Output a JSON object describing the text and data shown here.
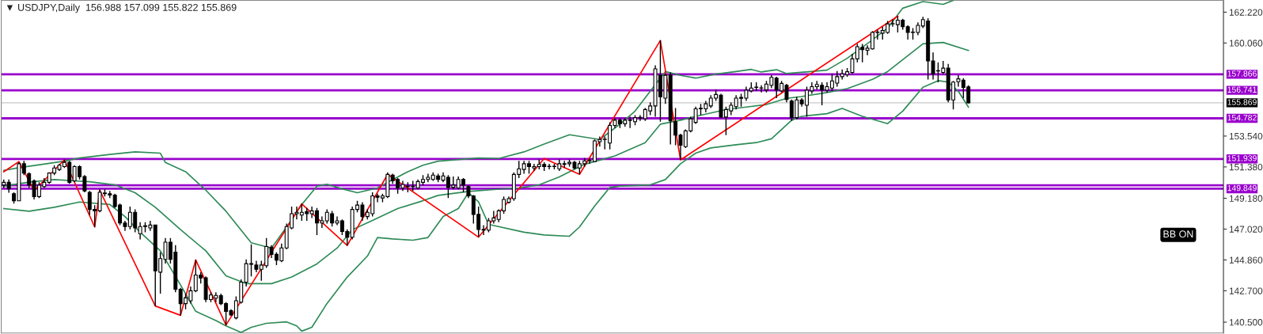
{
  "chart_data": {
    "type": "candlestick",
    "title": "▼ USDJPY,Daily  156.988 157.099 155.822 155.869",
    "categories": [
      null,
      null,
      null,
      null,
      null,
      null,
      null,
      null,
      null,
      null,
      null,
      null,
      null,
      null,
      null,
      null,
      null,
      null,
      null,
      null,
      null,
      null,
      null,
      null,
      null,
      null,
      null,
      null,
      null,
      null,
      null,
      null,
      null,
      null,
      null,
      null,
      null,
      null,
      null,
      null,
      null,
      null,
      null,
      null,
      null,
      null,
      null,
      null,
      null,
      null,
      null,
      null,
      null,
      null,
      null,
      null,
      null,
      null,
      null,
      null,
      null,
      null,
      null,
      null,
      null,
      null,
      null,
      null,
      null,
      null,
      null,
      null,
      null,
      null,
      null,
      null,
      null,
      null,
      null,
      null,
      null,
      null,
      null,
      null,
      null,
      null,
      null,
      null,
      null,
      null,
      null,
      null,
      null,
      null,
      null,
      null,
      null,
      null,
      null,
      null,
      null,
      null,
      null,
      null,
      null,
      null,
      null,
      null,
      null,
      null,
      null,
      null,
      null,
      null,
      null,
      null,
      null,
      null,
      null,
      null,
      null,
      null,
      null,
      null,
      null,
      null,
      null,
      null,
      null,
      null,
      null,
      null,
      null,
      null,
      null,
      null,
      null,
      null,
      null,
      null,
      null,
      null,
      null,
      null,
      null,
      null,
      null,
      null,
      null,
      null,
      null,
      null,
      null,
      null,
      null,
      null,
      null,
      null,
      null,
      null,
      null,
      null,
      null,
      null,
      null,
      null,
      null,
      null,
      null,
      null,
      null,
      null,
      null,
      null,
      null,
      null,
      null,
      null,
      null,
      null,
      null,
      null,
      null,
      null,
      null,
      null,
      null,
      null,
      null,
      null,
      null,
      null,
      null,
      null,
      null,
      null,
      null,
      null,
      null,
      null,
      null,
      null,
      null,
      null,
      null,
      null,
      null,
      null,
      null,
      null,
      null,
      null,
      null,
      null,
      null,
      null,
      null,
      null,
      null,
      null,
      null,
      null,
      null,
      null,
      null,
      null,
      null,
      null,
      null,
      null,
      null,
      null,
      null,
      null,
      null,
      null,
      null,
      null,
      null,
      null,
      null,
      null
    ],
    "ohlc": [
      [
        150.1,
        150.5,
        149.9,
        150.3
      ],
      [
        150.3,
        150.5,
        149.57,
        149.85
      ],
      [
        149.5,
        149.6,
        148.8,
        149.0
      ],
      [
        149.0,
        151.7,
        149.0,
        151.6
      ],
      [
        151.6,
        151.8,
        150.8,
        150.95
      ],
      [
        150.9,
        151.0,
        149.9,
        150.1
      ],
      [
        150.4,
        150.5,
        149.1,
        149.3
      ],
      [
        149.3,
        150.3,
        149.2,
        150.1
      ],
      [
        150.0,
        150.6,
        149.9,
        150.3
      ],
      [
        150.3,
        151.0,
        150.2,
        150.95
      ],
      [
        150.95,
        151.5,
        150.8,
        151.3
      ],
      [
        151.2,
        151.6,
        151.1,
        151.5
      ],
      [
        151.4,
        151.9,
        151.3,
        151.7
      ],
      [
        151.7,
        151.8,
        150.2,
        150.3
      ],
      [
        150.4,
        151.5,
        150.3,
        151.4
      ],
      [
        151.4,
        151.5,
        150.5,
        150.7
      ],
      [
        150.7,
        150.8,
        149.6,
        149.7
      ],
      [
        149.6,
        149.7,
        148.0,
        148.4
      ],
      [
        148.4,
        148.7,
        147.17,
        148.3
      ],
      [
        148.3,
        149.8,
        148.2,
        149.6
      ],
      [
        149.5,
        149.8,
        149.3,
        149.55
      ],
      [
        149.5,
        149.7,
        149.2,
        149.4
      ],
      [
        149.4,
        149.5,
        148.5,
        148.6
      ],
      [
        148.7,
        148.8,
        147.3,
        147.45
      ],
      [
        147.45,
        147.6,
        146.9,
        147.2
      ],
      [
        147.2,
        148.6,
        147.0,
        148.2
      ],
      [
        148.2,
        148.4,
        146.8,
        147.1
      ],
      [
        146.7,
        147.5,
        146.3,
        147.2
      ],
      [
        147.2,
        147.5,
        146.8,
        147.25
      ],
      [
        147.1,
        147.6,
        146.9,
        147.3
      ],
      [
        147.3,
        147.3,
        141.63,
        144.1
      ],
      [
        144.0,
        145.4,
        142.5,
        144.95
      ],
      [
        144.9,
        146.4,
        144.6,
        146.1
      ],
      [
        146.1,
        146.4,
        144.6,
        144.9
      ],
      [
        145.4,
        145.9,
        142.6,
        142.8
      ],
      [
        142.8,
        142.9,
        140.98,
        141.8
      ],
      [
        141.8,
        142.5,
        141.4,
        142.2
      ],
      [
        142.0,
        143.0,
        141.8,
        142.7
      ],
      [
        142.7,
        144.86,
        142.6,
        143.8
      ],
      [
        143.8,
        144.0,
        143.2,
        143.6
      ],
      [
        143.6,
        143.7,
        141.9,
        142.1
      ],
      [
        142.08,
        142.6,
        141.9,
        142.4
      ],
      [
        142.18,
        142.6,
        141.9,
        142.37
      ],
      [
        142.35,
        142.5,
        141.7,
        141.8
      ],
      [
        141.8,
        141.9,
        140.3,
        141.25
      ],
      [
        141.3,
        141.4,
        140.95,
        141.0
      ],
      [
        140.8,
        142.3,
        140.7,
        142.0
      ],
      [
        141.9,
        143.5,
        141.8,
        143.3
      ],
      [
        143.3,
        144.9,
        143.0,
        144.6
      ],
      [
        144.6,
        145.95,
        143.7,
        144.55
      ],
      [
        144.5,
        144.8,
        144.0,
        144.2
      ],
      [
        144.2,
        144.8,
        143.4,
        144.5
      ],
      [
        144.45,
        146.4,
        144.3,
        145.8
      ],
      [
        145.75,
        145.9,
        145.0,
        145.25
      ],
      [
        145.25,
        145.4,
        144.5,
        144.85
      ],
      [
        144.8,
        146.0,
        144.7,
        145.7
      ],
      [
        145.7,
        147.4,
        145.6,
        147.2
      ],
      [
        147.1,
        148.6,
        147.0,
        148.1
      ],
      [
        148.1,
        148.6,
        147.7,
        148.2
      ],
      [
        148.0,
        148.8,
        147.6,
        148.2
      ],
      [
        148.25,
        148.5,
        147.6,
        148.1
      ],
      [
        148.1,
        148.6,
        147.8,
        148.3
      ],
      [
        148.3,
        148.5,
        146.6,
        147.45
      ],
      [
        147.45,
        147.9,
        147.1,
        147.6
      ],
      [
        147.6,
        148.4,
        147.4,
        148.2
      ],
      [
        148.1,
        148.3,
        147.2,
        147.45
      ],
      [
        147.45,
        147.9,
        147.3,
        147.6
      ],
      [
        147.6,
        147.7,
        146.6,
        146.85
      ],
      [
        146.85,
        147.0,
        145.87,
        146.45
      ],
      [
        146.45,
        148.6,
        146.3,
        148.4
      ],
      [
        148.4,
        149.0,
        148.2,
        148.7
      ],
      [
        148.7,
        148.9,
        147.6,
        147.9
      ],
      [
        147.9,
        148.4,
        147.7,
        148.2
      ],
      [
        148.1,
        149.6,
        147.9,
        149.35
      ],
      [
        149.35,
        149.5,
        148.9,
        149.25
      ],
      [
        149.2,
        149.5,
        148.9,
        149.35
      ],
      [
        149.3,
        151.0,
        149.2,
        150.85
      ],
      [
        150.8,
        150.9,
        150.2,
        150.4
      ],
      [
        150.5,
        150.6,
        149.5,
        149.9
      ],
      [
        149.9,
        150.4,
        149.7,
        150.15
      ],
      [
        150.0,
        150.3,
        149.6,
        150.03
      ],
      [
        150.0,
        150.4,
        149.7,
        150.02
      ],
      [
        149.9,
        150.5,
        149.8,
        150.35
      ],
      [
        150.3,
        150.8,
        150.1,
        150.5
      ],
      [
        150.5,
        150.9,
        150.3,
        150.65
      ],
      [
        150.5,
        151.0,
        150.4,
        150.8
      ],
      [
        150.75,
        150.9,
        150.3,
        150.5
      ],
      [
        150.45,
        151.0,
        150.3,
        150.75
      ],
      [
        150.65,
        150.8,
        149.2,
        149.95
      ],
      [
        149.95,
        150.7,
        149.8,
        150.1
      ],
      [
        149.9,
        150.7,
        149.8,
        150.5
      ],
      [
        150.5,
        150.6,
        149.6,
        150.1
      ],
      [
        150.0,
        150.1,
        149.2,
        149.35
      ],
      [
        149.35,
        149.4,
        147.4,
        148.05
      ],
      [
        148.05,
        148.6,
        146.46,
        147.0
      ],
      [
        146.95,
        147.3,
        146.6,
        147.0
      ],
      [
        146.95,
        147.8,
        146.8,
        147.6
      ],
      [
        147.6,
        148.3,
        147.4,
        147.8
      ],
      [
        147.7,
        148.4,
        147.5,
        148.3
      ],
      [
        148.3,
        149.3,
        148.1,
        149.1
      ],
      [
        148.9,
        149.3,
        148.8,
        149.15
      ],
      [
        149.15,
        151.0,
        149.0,
        150.85
      ],
      [
        150.85,
        151.8,
        150.6,
        151.25
      ],
      [
        151.2,
        151.8,
        150.9,
        151.6
      ],
      [
        151.6,
        151.8,
        150.9,
        151.4
      ],
      [
        151.3,
        151.6,
        151.1,
        151.4
      ],
      [
        151.4,
        151.9,
        151.2,
        151.55
      ],
      [
        151.55,
        151.7,
        151.1,
        151.4
      ],
      [
        151.42,
        151.6,
        151.2,
        151.4
      ],
      [
        151.4,
        151.6,
        151.2,
        151.42
      ],
      [
        151.25,
        151.9,
        151.1,
        151.6
      ],
      [
        151.6,
        151.8,
        151.3,
        151.55
      ],
      [
        151.6,
        151.9,
        151.4,
        151.7
      ],
      [
        151.7,
        151.8,
        151.2,
        151.3
      ],
      [
        151.3,
        151.8,
        150.86,
        151.6
      ],
      [
        151.6,
        152.0,
        151.4,
        151.8
      ],
      [
        151.8,
        152.0,
        151.6,
        151.82
      ],
      [
        151.75,
        153.3,
        151.7,
        153.2
      ],
      [
        153.15,
        153.5,
        152.8,
        153.3
      ],
      [
        153.3,
        153.5,
        152.6,
        153.32
      ],
      [
        153.05,
        154.5,
        152.6,
        154.28
      ],
      [
        154.28,
        154.8,
        154.1,
        154.65
      ],
      [
        154.65,
        154.8,
        154.1,
        154.4
      ],
      [
        154.4,
        154.8,
        154.2,
        154.65
      ],
      [
        154.65,
        154.9,
        154.1,
        154.63
      ],
      [
        154.55,
        155.0,
        154.3,
        154.83
      ],
      [
        154.82,
        155.0,
        154.6,
        154.85
      ],
      [
        154.75,
        155.5,
        154.6,
        155.4
      ],
      [
        155.3,
        155.9,
        155.0,
        155.65
      ],
      [
        155.65,
        158.5,
        154.9,
        158.25
      ],
      [
        157.8,
        160.24,
        154.55,
        156.3
      ],
      [
        156.2,
        157.9,
        155.8,
        157.8
      ],
      [
        157.8,
        158.0,
        152.95,
        154.6
      ],
      [
        154.55,
        155.5,
        152.9,
        153.6
      ],
      [
        153.6,
        153.7,
        151.87,
        152.9
      ],
      [
        152.8,
        154.0,
        152.7,
        153.9
      ],
      [
        153.9,
        154.9,
        153.8,
        154.75
      ],
      [
        154.5,
        155.6,
        154.4,
        155.45
      ],
      [
        155.45,
        155.8,
        155.0,
        155.48
      ],
      [
        155.45,
        156.0,
        155.2,
        155.8
      ],
      [
        155.65,
        156.4,
        155.5,
        156.2
      ],
      [
        156.2,
        156.8,
        156.0,
        156.45
      ],
      [
        156.4,
        156.5,
        154.8,
        154.87
      ],
      [
        154.87,
        155.6,
        153.6,
        155.4
      ],
      [
        155.3,
        155.9,
        155.0,
        155.7
      ],
      [
        155.6,
        156.4,
        155.4,
        156.2
      ],
      [
        156.25,
        156.5,
        155.6,
        156.18
      ],
      [
        156.2,
        157.0,
        156.0,
        156.75
      ],
      [
        156.7,
        157.3,
        156.6,
        156.9
      ],
      [
        156.95,
        157.3,
        156.7,
        156.97
      ],
      [
        156.9,
        157.1,
        156.6,
        156.92
      ],
      [
        156.77,
        157.4,
        156.6,
        157.18
      ],
      [
        157.1,
        157.8,
        156.9,
        157.65
      ],
      [
        157.6,
        157.7,
        156.2,
        156.77
      ],
      [
        156.7,
        157.4,
        156.6,
        157.23
      ],
      [
        157.1,
        157.2,
        155.9,
        156.1
      ],
      [
        156.0,
        156.1,
        154.6,
        154.83
      ],
      [
        154.83,
        156.3,
        154.7,
        156.07
      ],
      [
        156.07,
        156.2,
        155.6,
        155.8
      ],
      [
        155.7,
        157.0,
        154.9,
        156.75
      ],
      [
        156.7,
        157.3,
        156.5,
        157.0
      ],
      [
        157.0,
        157.4,
        156.8,
        157.15
      ],
      [
        157.1,
        157.3,
        155.7,
        156.77
      ],
      [
        156.75,
        157.3,
        156.6,
        157.0
      ],
      [
        156.9,
        157.9,
        156.7,
        157.4
      ],
      [
        157.25,
        158.1,
        157.0,
        157.7
      ],
      [
        157.7,
        158.2,
        157.5,
        157.9
      ],
      [
        157.85,
        158.3,
        157.7,
        158.05
      ],
      [
        158.0,
        159.3,
        157.9,
        158.95
      ],
      [
        158.95,
        160.0,
        158.7,
        159.8
      ],
      [
        159.75,
        160.0,
        158.7,
        159.6
      ],
      [
        159.55,
        159.9,
        159.2,
        159.7
      ],
      [
        159.65,
        160.9,
        159.6,
        160.8
      ],
      [
        160.8,
        161.0,
        160.3,
        160.82
      ],
      [
        160.75,
        161.2,
        160.3,
        160.93
      ],
      [
        160.8,
        161.6,
        160.7,
        161.4
      ],
      [
        161.4,
        161.7,
        161.2,
        161.42
      ],
      [
        161.35,
        161.94,
        160.8,
        161.66
      ],
      [
        161.66,
        161.75,
        161.0,
        161.2
      ],
      [
        161.2,
        161.3,
        160.3,
        160.8
      ],
      [
        160.8,
        161.1,
        160.3,
        160.82
      ],
      [
        160.8,
        161.5,
        160.6,
        161.3
      ],
      [
        161.25,
        161.9,
        161.1,
        161.7
      ],
      [
        161.6,
        161.8,
        157.5,
        158.8
      ],
      [
        158.8,
        159.4,
        157.5,
        157.9
      ],
      [
        158.1,
        158.7,
        157.3,
        158.12
      ],
      [
        158.0,
        158.8,
        157.9,
        158.3
      ],
      [
        158.3,
        158.6,
        155.9,
        156.07
      ],
      [
        156.07,
        157.4,
        155.4,
        157.32
      ],
      [
        157.35,
        157.8,
        157.0,
        157.55
      ],
      [
        157.45,
        157.6,
        156.2,
        156.95
      ],
      [
        156.988,
        157.099,
        155.822,
        155.869
      ],
      null,
      null,
      null,
      null,
      null,
      null,
      null,
      null,
      null,
      null,
      null,
      null,
      null,
      null,
      null,
      null,
      null,
      null,
      null,
      null,
      null,
      null,
      null,
      null,
      null,
      null,
      null,
      null,
      null,
      null,
      null,
      null,
      null,
      null,
      null,
      null,
      null,
      null,
      null,
      null,
      null,
      null,
      null,
      null,
      null,
      null,
      null,
      null,
      null,
      null
    ],
    "series": [
      {
        "type": "line",
        "color": "#2e8b57",
        "values": [
          151.13,
          null,
          null,
          151.32,
          null,
          null,
          null,
          null,
          null,
          null,
          null,
          null,
          151.78,
          null,
          null,
          152.0,
          null,
          null,
          null,
          null,
          null,
          152.25,
          null,
          null,
          null,
          null,
          152.43,
          null,
          null,
          null,
          null,
          152.34,
          151.69,
          null,
          null,
          null,
          151.04,
          null,
          null,
          null,
          149.75,
          null,
          null,
          null,
          148.27,
          null,
          null,
          null,
          null,
          146.06,
          null,
          null,
          null,
          145.69,
          null,
          null,
          147.17,
          null,
          null,
          148.74,
          null,
          null,
          150.03,
          null,
          150.16,
          null,
          null,
          149.84,
          null,
          null,
          149.57,
          null,
          null,
          null,
          149.9,
          null,
          null,
          150.49,
          null,
          null,
          151.04,
          null,
          null,
          151.5,
          null,
          null,
          151.78,
          null,
          null,
          null,
          null,
          null,
          null,
          null,
          152.0,
          null,
          null,
          null,
          151.97,
          null,
          null,
          null,
          null,
          152.43,
          null,
          null,
          null,
          152.98,
          null,
          null,
          null,
          null,
          153.63,
          null,
          null,
          null,
          null,
          null,
          153.3,
          null,
          null,
          null,
          154.37,
          null,
          null,
          155.29,
          null,
          null,
          156.68,
          null,
          null,
          158.06,
          null,
          null,
          157.79,
          null,
          null,
          157.6,
          null,
          null,
          null,
          157.88,
          null,
          null,
          null,
          158.06,
          null,
          null,
          158.21,
          null,
          158.03,
          null,
          null,
          158.19,
          null,
          157.92,
          null,
          null,
          null,
          null,
          null,
          null,
          null,
          158.16,
          null,
          null,
          null,
          158.99,
          null,
          null,
          null,
          null,
          160.28,
          null,
          null,
          161.11,
          null,
          null,
          162.5,
          null,
          null,
          null,
          162.96,
          null,
          null,
          null,
          162.77,
          null,
          163.05,
          null,
          null,
          null,
          null,
          null,
          null,
          null,
          null,
          null,
          null,
          null,
          null,
          null,
          null,
          null,
          null,
          null,
          null,
          null,
          null,
          null,
          null,
          null,
          null,
          null,
          null,
          null,
          null,
          null,
          null,
          null,
          null,
          null,
          null,
          null,
          null,
          null,
          null,
          null,
          null,
          null,
          null,
          null,
          null,
          null,
          null,
          null,
          null,
          null,
          null,
          null,
          null,
          null
        ]
      },
      {
        "type": "line",
        "color": "#2e8b57",
        "values": [
          150.03,
          null,
          null,
          null,
          null,
          150.31,
          null,
          null,
          null,
          null,
          150.49,
          null,
          null,
          null,
          150.4,
          null,
          null,
          150.34,
          null,
          null,
          null,
          null,
          150.12,
          null,
          null,
          null,
          149.57,
          null,
          null,
          null,
          148.55,
          null,
          null,
          null,
          null,
          146.98,
          null,
          null,
          null,
          null,
          145.5,
          null,
          null,
          null,
          143.75,
          null,
          null,
          null,
          143.2,
          null,
          null,
          null,
          null,
          143.2,
          null,
          null,
          null,
          143.66,
          null,
          null,
          null,
          null,
          144.58,
          null,
          null,
          null,
          145.69,
          null,
          null,
          146.98,
          null,
          null,
          null,
          147.63,
          null,
          null,
          null,
          null,
          148.46,
          null,
          null,
          null,
          null,
          149.01,
          null,
          null,
          149.38,
          null,
          null,
          null,
          null,
          null,
          149.66,
          null,
          null,
          null,
          null,
          149.79,
          null,
          null,
          null,
          null,
          149.9,
          null,
          null,
          null,
          150.12,
          null,
          null,
          null,
          150.68,
          null,
          null,
          null,
          null,
          151.56,
          null,
          null,
          null,
          null,
          null,
          152.15,
          null,
          null,
          null,
          null,
          null,
          153.08,
          null,
          null,
          154.37,
          null,
          null,
          null,
          154.65,
          null,
          null,
          154.92,
          null,
          null,
          null,
          null,
          null,
          155.39,
          null,
          null,
          null,
          155.57,
          null,
          null,
          null,
          155.75,
          null,
          null,
          null,
          156.18,
          null,
          null,
          156.31,
          null,
          null,
          null,
          null,
          156.59,
          null,
          null,
          null,
          156.86,
          null,
          null,
          null,
          null,
          157.51,
          null,
          null,
          158.06,
          null,
          null,
          158.89,
          null,
          null,
          null,
          160.0,
          null,
          null,
          null,
          160.1,
          null,
          null,
          null,
          null,
          159.54,
          null,
          null,
          null,
          null,
          null,
          null,
          null,
          null,
          null,
          null,
          null,
          null,
          null,
          null,
          null,
          null,
          null,
          null,
          null,
          null,
          null,
          null,
          null,
          null,
          null,
          null,
          null,
          null,
          null,
          null,
          null,
          null,
          null,
          null,
          null,
          null,
          null,
          null,
          null,
          null,
          null,
          null,
          null,
          null,
          null,
          null,
          null,
          null,
          null,
          null
        ]
      },
      {
        "type": "line",
        "color": "#2e8b57",
        "values": [
          148.46,
          null,
          null,
          null,
          null,
          148.27,
          null,
          null,
          null,
          null,
          148.55,
          null,
          null,
          null,
          null,
          148.92,
          null,
          null,
          null,
          null,
          null,
          148.74,
          null,
          null,
          147.9,
          null,
          null,
          146.8,
          null,
          null,
          null,
          145.5,
          null,
          null,
          null,
          143.1,
          null,
          null,
          141.26,
          null,
          null,
          null,
          140.61,
          null,
          140.24,
          null,
          null,
          139.78,
          null,
          140.14,
          null,
          null,
          140.42,
          null,
          null,
          null,
          140.52,
          null,
          140.24,
          139.87,
          null,
          140.14,
          null,
          null,
          141.81,
          null,
          null,
          null,
          143.66,
          null,
          null,
          null,
          145.13,
          null,
          146.43,
          null,
          null,
          146.33,
          null,
          null,
          null,
          146.24,
          null,
          null,
          146.43,
          null,
          null,
          147.9,
          null,
          null,
          148.46,
          null,
          149.57,
          null,
          148.92,
          null,
          147.35,
          null,
          null,
          null,
          null,
          null,
          null,
          146.8,
          null,
          null,
          null,
          146.61,
          null,
          null,
          null,
          null,
          146.52,
          null,
          147.17,
          null,
          null,
          148.64,
          null,
          null,
          149.94,
          null,
          150.03,
          null,
          null,
          null,
          null,
          null,
          150.12,
          null,
          null,
          150.49,
          null,
          null,
          151.6,
          null,
          null,
          152.34,
          null,
          null,
          152.71,
          null,
          null,
          null,
          null,
          152.93,
          null,
          null,
          null,
          153.08,
          null,
          null,
          153.35,
          null,
          154.0,
          null,
          154.65,
          null,
          154.92,
          null,
          null,
          null,
          null,
          155.11,
          null,
          null,
          155.48,
          null,
          null,
          null,
          154.92,
          null,
          null,
          null,
          null,
          154.41,
          null,
          null,
          155.29,
          null,
          null,
          null,
          156.96,
          null,
          null,
          157.42,
          null,
          157.32,
          null,
          156.68,
          null,
          155.57,
          null,
          null,
          null,
          null,
          null,
          null,
          null,
          null,
          null,
          null,
          null,
          null,
          null,
          null,
          null,
          null,
          null,
          null,
          null,
          null,
          null,
          null,
          null,
          null,
          null,
          null,
          null,
          null,
          null,
          null,
          null,
          null,
          null,
          null,
          null,
          null,
          null,
          null,
          null,
          null,
          null,
          null,
          null,
          null,
          null,
          null,
          null,
          null,
          null,
          null
        ]
      },
      {
        "type": "line",
        "color": "#ff0000",
        "values": [
          151.04,
          null,
          null,
          151.75,
          null,
          null,
          149.72,
          null,
          null,
          null,
          null,
          null,
          151.87,
          null,
          null,
          null,
          null,
          null,
          147.17,
          149.75,
          null,
          null,
          null,
          null,
          null,
          null,
          null,
          null,
          null,
          null,
          141.63,
          null,
          null,
          null,
          null,
          140.98,
          null,
          null,
          144.86,
          null,
          null,
          null,
          null,
          null,
          140.3,
          null,
          null,
          null,
          null,
          null,
          null,
          null,
          null,
          null,
          null,
          null,
          null,
          null,
          null,
          148.79,
          null,
          null,
          null,
          null,
          null,
          null,
          null,
          null,
          145.87,
          null,
          null,
          null,
          null,
          null,
          null,
          null,
          150.86,
          null,
          null,
          null,
          null,
          null,
          null,
          null,
          null,
          null,
          null,
          null,
          null,
          null,
          null,
          null,
          null,
          null,
          146.46,
          null,
          null,
          null,
          null,
          null,
          null,
          null,
          null,
          null,
          null,
          null,
          null,
          151.97,
          null,
          null,
          null,
          null,
          null,
          null,
          150.86,
          null,
          null,
          null,
          null,
          null,
          null,
          null,
          null,
          null,
          null,
          null,
          null,
          null,
          null,
          null,
          160.24,
          null,
          null,
          null,
          151.87,
          null,
          null,
          null,
          null,
          null,
          null,
          null,
          null,
          null,
          null,
          null,
          null,
          null,
          null,
          null,
          null,
          null,
          null,
          null,
          null,
          null,
          null,
          null,
          null,
          null,
          null,
          null,
          null,
          null,
          null,
          null,
          null,
          null,
          null,
          null,
          null,
          null,
          null,
          null,
          null,
          null,
          null,
          161.94,
          null,
          null,
          null,
          null,
          null,
          null,
          null,
          null,
          null,
          null,
          null,
          null,
          null,
          null,
          null,
          null,
          null,
          null,
          null,
          null,
          null,
          null,
          null,
          null,
          null,
          null,
          null,
          null,
          null,
          null,
          null,
          null,
          null,
          null,
          null,
          null,
          null,
          null,
          null,
          null,
          null,
          null,
          null,
          null,
          null,
          null,
          null,
          null,
          null,
          null,
          null,
          null,
          null,
          null,
          null,
          null,
          null,
          null,
          null,
          null,
          null,
          null,
          null,
          null
        ]
      }
    ],
    "ylim": [
      139.74,
      163.05
    ],
    "yticks": [
      {
        "value": 162.22,
        "label": "162.220"
      },
      {
        "value": 160.06,
        "label": "160.060"
      },
      {
        "value": 153.54,
        "label": "153.540"
      },
      {
        "value": 151.38,
        "label": "151.380"
      },
      {
        "value": 149.18,
        "label": "149.180"
      },
      {
        "value": 147.02,
        "label": "147.020"
      },
      {
        "value": 144.86,
        "label": "144.860"
      },
      {
        "value": 142.7,
        "label": "142.700"
      },
      {
        "value": 140.5,
        "label": "140.500"
      }
    ],
    "ref_lines": [
      {
        "axis": "y",
        "value": 157.866,
        "label": "157.866",
        "color": "#9900cc"
      },
      {
        "axis": "y",
        "value": 156.741,
        "label": "156.741",
        "color": "#9900cc"
      },
      {
        "axis": "y",
        "value": 155.869,
        "label": "155.869",
        "color": "#c8c8c8"
      },
      {
        "axis": "y",
        "value": 154.782,
        "label": "154.782",
        "color": "#9900cc"
      },
      {
        "axis": "y",
        "value": 151.939,
        "label": "151.939",
        "color": "#9900cc"
      },
      {
        "axis": "y",
        "value": 150.09,
        "label": null,
        "color": "#9900cc"
      },
      {
        "axis": "y",
        "value": 149.849,
        "label": "149.849",
        "color": "#9900cc"
      }
    ],
    "annotations": [
      "BB ON"
    ],
    "tick_labels": "y"
  }
}
